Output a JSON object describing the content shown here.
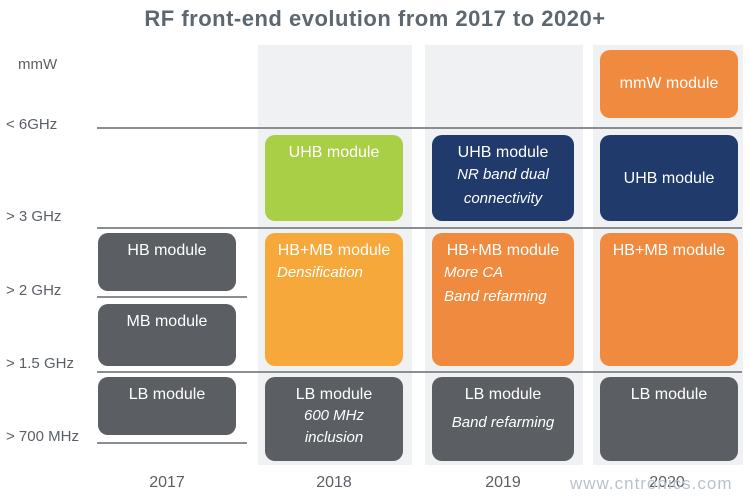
{
  "title": "RF front-end evolution from 2017 to 2020+",
  "y_labels": [
    "mmW",
    "< 6GHz",
    "> 3 GHz",
    "> 2 GHz",
    "> 1.5 GHz",
    "> 700 MHz"
  ],
  "years": [
    "2017",
    "2018",
    "2019",
    "2020"
  ],
  "boxes": {
    "y2017": {
      "hb": "HB module",
      "mb": "MB module",
      "lb": "LB module"
    },
    "y2018": {
      "uhb": "UHB module",
      "hbmb": "HB+MB module",
      "hbmb_sub": "Densification",
      "lb": "LB module",
      "lb_sub": "600 MHz\ninclusion"
    },
    "y2019": {
      "uhb": "UHB module",
      "uhb_sub": "NR band dual\nconnectivity",
      "hbmb": "HB+MB module",
      "hbmb_sub": "More CA\nBand refarming",
      "lb": "LB module",
      "lb_sub": "Band refarming"
    },
    "y2020": {
      "mmw": "mmW module",
      "uhb": "UHB module",
      "hbmb": "HB+MB module",
      "lb": "LB module"
    }
  },
  "watermark": "www.cntronics.com",
  "colors": {
    "grey": "#5b5e62",
    "green": "#a8cf45",
    "navy": "#1f3a6b",
    "orange": "#f08a3e",
    "light_orange": "#f6a83a"
  }
}
